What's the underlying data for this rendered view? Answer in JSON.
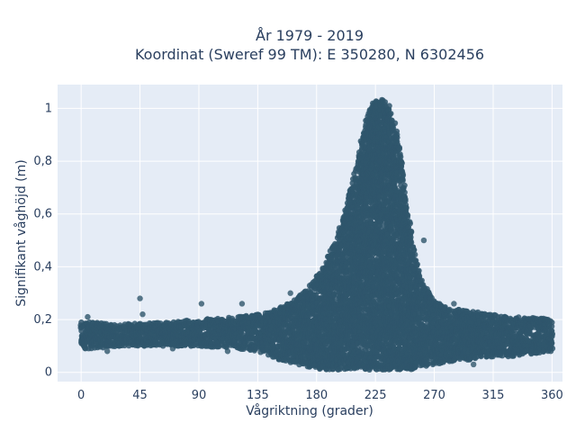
{
  "chart_data": {
    "type": "scatter",
    "title": "År 1979 - 2019",
    "subtitle": "Koordinat (Sweref 99 TM): E 350280, N 6302456",
    "xlabel": "Vågriktning (grader)",
    "ylabel": "Signifikant våghöjd (m)",
    "xlim": [
      -18,
      368
    ],
    "ylim": [
      -0.035,
      1.09
    ],
    "x_ticks": [
      0,
      45,
      90,
      135,
      180,
      225,
      270,
      315,
      360
    ],
    "y_ticks": [
      0,
      0.2,
      0.4,
      0.6,
      0.8,
      1
    ],
    "x_tick_labels": [
      "0",
      "45",
      "90",
      "135",
      "180",
      "225",
      "270",
      "315",
      "360"
    ],
    "y_tick_labels": [
      "0",
      "0,2",
      "0,4",
      "0,6",
      "0,8",
      "1"
    ],
    "grid": true,
    "marker_color": "#2f566c",
    "plot_bgcolor": "#e5ecf6",
    "envelope": {
      "x": [
        0,
        10,
        30,
        45,
        60,
        90,
        120,
        135,
        150,
        165,
        175,
        185,
        195,
        200,
        205,
        210,
        215,
        220,
        225,
        230,
        235,
        240,
        245,
        250,
        255,
        260,
        270,
        285,
        300,
        315,
        330,
        345,
        360
      ],
      "y_min": [
        0.09,
        0.09,
        0.1,
        0.1,
        0.1,
        0.1,
        0.09,
        0.08,
        0.05,
        0.03,
        0.02,
        0.01,
        0.01,
        0.01,
        0.01,
        0.01,
        0.01,
        0.01,
        0.01,
        0.01,
        0.01,
        0.01,
        0.01,
        0.01,
        0.01,
        0.02,
        0.03,
        0.04,
        0.05,
        0.06,
        0.06,
        0.07,
        0.08
      ],
      "y_max": [
        0.19,
        0.19,
        0.18,
        0.19,
        0.19,
        0.2,
        0.21,
        0.22,
        0.24,
        0.28,
        0.33,
        0.4,
        0.5,
        0.58,
        0.68,
        0.78,
        0.9,
        0.99,
        1.04,
        1.04,
        1.02,
        0.95,
        0.8,
        0.6,
        0.45,
        0.35,
        0.27,
        0.24,
        0.23,
        0.22,
        0.21,
        0.21,
        0.2
      ]
    },
    "outliers": [
      {
        "x": 45,
        "y": 0.28
      },
      {
        "x": 47,
        "y": 0.22
      },
      {
        "x": 92,
        "y": 0.26
      },
      {
        "x": 123,
        "y": 0.26
      },
      {
        "x": 20,
        "y": 0.08
      },
      {
        "x": 70,
        "y": 0.09
      },
      {
        "x": 112,
        "y": 0.08
      },
      {
        "x": 5,
        "y": 0.21
      },
      {
        "x": 160,
        "y": 0.3
      },
      {
        "x": 262,
        "y": 0.5
      },
      {
        "x": 285,
        "y": 0.26
      },
      {
        "x": 300,
        "y": 0.03
      }
    ]
  }
}
